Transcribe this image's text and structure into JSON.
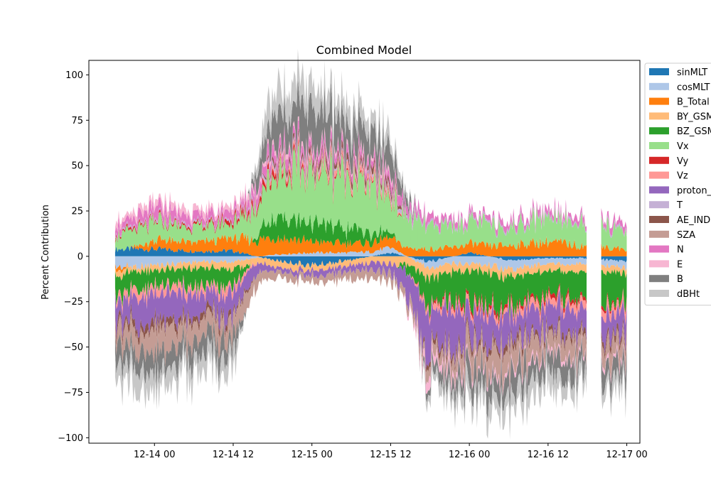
{
  "chart_data": {
    "type": "area",
    "title": "Combined Model",
    "xlabel": "",
    "ylabel": "Percent Contribution",
    "ylim": [
      -103,
      108
    ],
    "xlim": [
      "2023-12-13 14:00",
      "2023-12-17 02:00"
    ],
    "yticks": [
      100,
      75,
      50,
      25,
      0,
      -25,
      -50,
      -75,
      -100
    ],
    "yticklabels": [
      "100",
      "75",
      "50",
      "25",
      "0",
      "−25",
      "−50",
      "−75",
      "−100"
    ],
    "xticks": [
      "2023-12-14 00:00",
      "2023-12-14 12:00",
      "2023-12-15 00:00",
      "2023-12-15 12:00",
      "2023-12-16 00:00",
      "2023-12-16 12:00",
      "2023-12-17 00:00"
    ],
    "xticklabels": [
      "12-14 00",
      "12-14 12",
      "12-15 00",
      "12-15 12",
      "12-16 00",
      "12-16 12",
      "12-17 00"
    ],
    "legend_position": "outside top-right",
    "grid": false,
    "x": [
      "2023-12-13 18:00",
      "2023-12-14 00:00",
      "2023-12-14 06:00",
      "2023-12-14 12:00",
      "2023-12-14 18:00",
      "2023-12-15 00:00",
      "2023-12-15 06:00",
      "2023-12-15 12:00",
      "2023-12-15 18:00",
      "2023-12-16 00:00",
      "2023-12-16 06:00",
      "2023-12-16 12:00",
      "2023-12-16 17:00",
      "2023-12-17 00:00"
    ],
    "gaps": [
      [
        "2023-12-16 18:00",
        "2023-12-16 20:00"
      ]
    ],
    "series": [
      {
        "name": "sinMLT",
        "color": "#1f77b4",
        "values": [
          4,
          4,
          3,
          3,
          -2,
          -5,
          -2,
          2,
          -3,
          2,
          -2,
          -1,
          -1,
          -3
        ]
      },
      {
        "name": "cosMLT",
        "color": "#aec7e8",
        "values": [
          -6,
          -5,
          -3,
          -3,
          1,
          2,
          2,
          3,
          -4,
          -4,
          -5,
          -3,
          -3,
          -4
        ]
      },
      {
        "name": "B_Total",
        "color": "#ff7f0e",
        "values": [
          -3,
          5,
          5,
          7,
          10,
          6,
          5,
          5,
          4,
          5,
          6,
          8,
          6,
          4
        ]
      },
      {
        "name": "BY_GSM",
        "color": "#ffbb78",
        "values": [
          -3,
          -3,
          -3,
          -4,
          -3,
          -3,
          -3,
          -4,
          -6,
          -4,
          -4,
          -4,
          -4,
          -3
        ]
      },
      {
        "name": "BZ_GSM",
        "color": "#2ca02c",
        "values": [
          -12,
          -8,
          -10,
          -10,
          12,
          10,
          8,
          3,
          -15,
          -18,
          -17,
          -15,
          -14,
          -15
        ]
      },
      {
        "name": "Vx",
        "color": "#98df8a",
        "values": [
          8,
          10,
          8,
          8,
          25,
          28,
          30,
          20,
          12,
          12,
          10,
          15,
          12,
          10
        ]
      },
      {
        "name": "Vy",
        "color": "#d62728",
        "values": [
          1,
          1,
          1,
          2,
          3,
          1,
          1,
          1,
          -1,
          -2,
          -2,
          -2,
          -2,
          -1
        ]
      },
      {
        "name": "Vz",
        "color": "#ff9896",
        "values": [
          -3,
          -5,
          -4,
          -4,
          2,
          2,
          3,
          2,
          -3,
          -3,
          -3,
          -4,
          -4,
          -4
        ]
      },
      {
        "name": "proton_density",
        "color": "#9467bd",
        "values": [
          -12,
          -15,
          -12,
          -12,
          -2,
          -3,
          -3,
          -5,
          -25,
          -15,
          -14,
          -13,
          -12,
          -12
        ]
      },
      {
        "name": "T",
        "color": "#c5b0d5",
        "values": [
          1,
          1,
          1,
          1,
          2,
          1,
          1,
          2,
          1,
          1,
          1,
          1,
          1,
          1
        ]
      },
      {
        "name": "AE_INDEX",
        "color": "#8c564b",
        "values": [
          -3,
          -4,
          -3,
          -3,
          2,
          3,
          3,
          3,
          -3,
          -3,
          -3,
          -3,
          -3,
          -3
        ]
      },
      {
        "name": "SZA",
        "color": "#c49c94",
        "values": [
          -8,
          -12,
          -10,
          -10,
          -4,
          -3,
          -5,
          -4,
          -5,
          -10,
          -12,
          -10,
          -10,
          -10
        ]
      },
      {
        "name": "N",
        "color": "#e377c2",
        "values": [
          4,
          6,
          4,
          4,
          6,
          5,
          4,
          4,
          4,
          3,
          3,
          3,
          3,
          3
        ]
      },
      {
        "name": "E",
        "color": "#f7b6d2",
        "values": [
          3,
          4,
          3,
          3,
          2,
          2,
          2,
          2,
          -6,
          -2,
          -2,
          -2,
          -2,
          -2
        ]
      },
      {
        "name": "B",
        "color": "#7f7f7f",
        "values": [
          -10,
          -12,
          -10,
          -10,
          18,
          20,
          15,
          12,
          -5,
          -10,
          -12,
          -10,
          -10,
          -10
        ]
      },
      {
        "name": "dBHt",
        "color": "#c7c7c7",
        "values": [
          -12,
          -10,
          -10,
          -8,
          15,
          12,
          10,
          8,
          -5,
          -8,
          -10,
          -9,
          -8,
          -7
        ]
      }
    ]
  }
}
